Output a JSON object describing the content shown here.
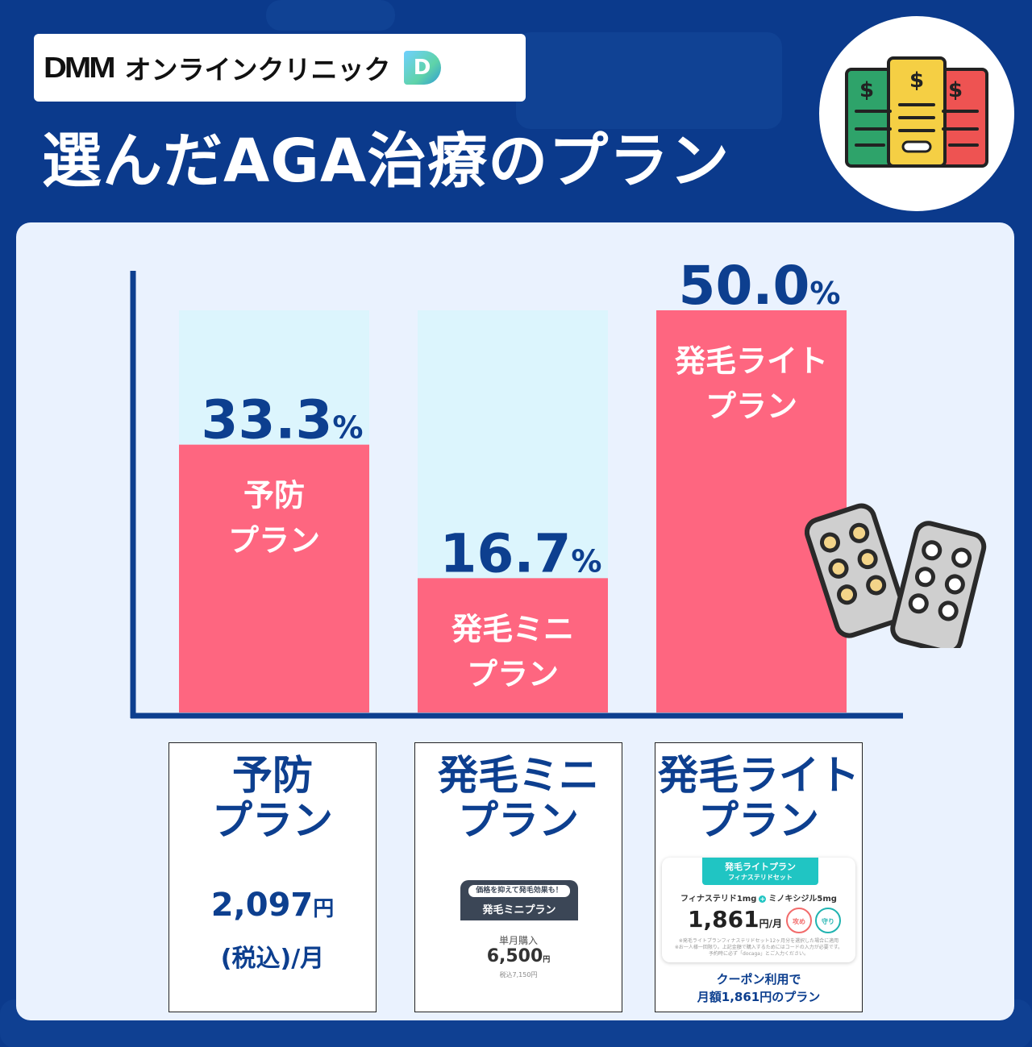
{
  "header": {
    "logo_brand": "DMM",
    "logo_text": "オンラインクリニック",
    "logo_mark": "D",
    "title": "選んだAGA治療のプラン"
  },
  "chart_data": {
    "type": "bar",
    "categories": [
      "予防\nプラン",
      "発毛ミニ\nプラン",
      "発毛ライト\nプラン"
    ],
    "values": [
      33.3,
      16.7,
      50.0
    ],
    "value_labels": [
      "33.3",
      "16.7",
      "50.0"
    ],
    "unit": "%",
    "ylim": [
      0,
      50.0
    ],
    "title": "",
    "xlabel": "",
    "ylabel": "",
    "grid": false,
    "bar_color": "#fe6680",
    "track_color": "#dcf5fd",
    "value_color": "#0d3f8f",
    "axis_color": "#0d3f8f"
  },
  "cards": {
    "yobo": {
      "title_line1": "予防",
      "title_line2": "プラン",
      "price": "2,097",
      "price_unit": "円",
      "tax": "(税込)/月"
    },
    "mini": {
      "title_line1": "発毛ミニ",
      "title_line2": "プラン",
      "tag": "価格を抑えて発毛効果も！",
      "name": "発毛ミニプラン",
      "buy_label": "単月購入",
      "price": "6,500",
      "price_unit": "円",
      "tax_in": "税込7,150円"
    },
    "light": {
      "title_line1": "発毛ライト",
      "title_line2": "プラン",
      "banner_name": "発毛ライトプラン",
      "banner_sub": "フィナステリドセット",
      "med1": "フィナステリド1mg",
      "med2": "ミノキシジル5mg",
      "price": "1,861",
      "price_unit": "円/月",
      "badge1": "攻め",
      "badge2": "守り",
      "note1": "※発毛ライトプランフィナステリドセット12ヶ月分を選択した場合に適用",
      "note2": "※お一人様一回限り。上記金額で購入するためにはコードの入力が必要です。",
      "note3": "予約時に必ず「docaga」とご入力ください。",
      "coupon_line1": "クーポン利用で",
      "coupon_line2": "月額1,861円のプラン"
    }
  },
  "colors": {
    "background": "#0b3a8c",
    "panel": "#eaf2fe",
    "accent_text": "#0d3f8f",
    "bar": "#fe6680",
    "bar_track": "#dcf5fd",
    "teal": "#20c5c3"
  },
  "icons": [
    "money-bills-icon",
    "pill-blister-icon"
  ]
}
